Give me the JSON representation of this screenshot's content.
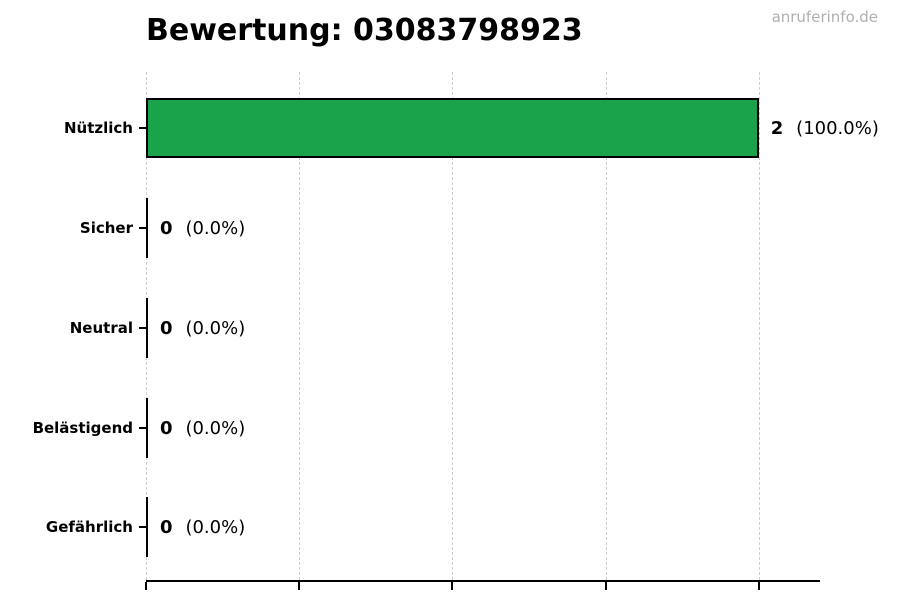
{
  "watermark": {
    "text": "anruferinfo.de"
  },
  "chart_data": {
    "type": "bar",
    "orientation": "horizontal",
    "title": "Bewertung: 03083798923",
    "categories": [
      "Nützlich",
      "Sicher",
      "Neutral",
      "Belästigend",
      "Gefährlich"
    ],
    "values": [
      2,
      0,
      0,
      0,
      0
    ],
    "value_labels": [
      "2",
      "0",
      "0",
      "0",
      "0"
    ],
    "pct_labels": [
      "(100.0%)",
      "(0.0%)",
      "(0.0%)",
      "(0.0%)",
      "(0.0%)"
    ],
    "xlim": [
      0,
      2.2
    ],
    "x_ticks": [
      0,
      0.5,
      1.0,
      1.5,
      2.0
    ],
    "grid": "vertical-dashed",
    "legend": "none",
    "bar_color": "#1aa34a",
    "bar_edge_color": "#000000",
    "grid_color": "#cdcdcd",
    "watermark_color": "#b0b0b0"
  }
}
